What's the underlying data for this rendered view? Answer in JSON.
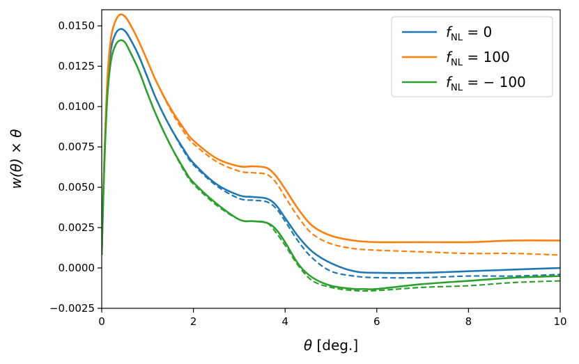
{
  "chart_data": {
    "type": "line",
    "xlabel": {
      "symbol": "θ",
      "text": " [deg.]"
    },
    "ylabel": "w(θ) × θ",
    "xlim": [
      0,
      10
    ],
    "ylim": [
      -0.0025,
      0.016
    ],
    "xticks": [
      0,
      2,
      4,
      6,
      8,
      10
    ],
    "xtick_labels": [
      "0",
      "2",
      "4",
      "6",
      "8",
      "10"
    ],
    "yticks": [
      -0.0025,
      0.0,
      0.0025,
      0.005,
      0.0075,
      0.01,
      0.0125,
      0.015
    ],
    "ytick_labels": [
      "−0.0025",
      "0.0000",
      "0.0025",
      "0.0050",
      "0.0075",
      "0.0100",
      "0.0125",
      "0.0150"
    ],
    "grid": false,
    "legend_position": "top-right",
    "series": [
      {
        "legend": {
          "sym": "f",
          "sub": "NL",
          "rest": " = 0"
        },
        "color": "#1f77b4",
        "solid": [
          [
            0.0,
            0.0008
          ],
          [
            0.05,
            0.006
          ],
          [
            0.12,
            0.011
          ],
          [
            0.2,
            0.0135
          ],
          [
            0.3,
            0.0145
          ],
          [
            0.4,
            0.0148
          ],
          [
            0.5,
            0.0147
          ],
          [
            0.6,
            0.0143
          ],
          [
            0.8,
            0.0132
          ],
          [
            1.0,
            0.0118
          ],
          [
            1.2,
            0.0104
          ],
          [
            1.5,
            0.0087
          ],
          [
            1.8,
            0.0073
          ],
          [
            2.0,
            0.0065
          ],
          [
            2.5,
            0.0052
          ],
          [
            3.0,
            0.0045
          ],
          [
            3.3,
            0.0044
          ],
          [
            3.6,
            0.0043
          ],
          [
            3.8,
            0.0039
          ],
          [
            4.0,
            0.0031
          ],
          [
            4.3,
            0.0019
          ],
          [
            4.6,
            0.001
          ],
          [
            5.0,
            0.0003
          ],
          [
            5.5,
            -0.0002
          ],
          [
            6.0,
            -0.0003
          ],
          [
            7.0,
            -0.0003
          ],
          [
            8.0,
            -0.0002
          ],
          [
            9.0,
            -0.0001
          ],
          [
            10.0,
            0.0
          ]
        ],
        "dashed": [
          [
            0.0,
            0.0008
          ],
          [
            0.05,
            0.006
          ],
          [
            0.12,
            0.011
          ],
          [
            0.2,
            0.0135
          ],
          [
            0.3,
            0.0145
          ],
          [
            0.4,
            0.0148
          ],
          [
            0.5,
            0.0147
          ],
          [
            0.6,
            0.0143
          ],
          [
            0.8,
            0.0132
          ],
          [
            1.0,
            0.0118
          ],
          [
            1.2,
            0.0104
          ],
          [
            1.5,
            0.0087
          ],
          [
            1.8,
            0.0072
          ],
          [
            2.0,
            0.0064
          ],
          [
            2.5,
            0.0051
          ],
          [
            3.0,
            0.0043
          ],
          [
            3.3,
            0.0042
          ],
          [
            3.6,
            0.0041
          ],
          [
            3.8,
            0.0037
          ],
          [
            4.0,
            0.0029
          ],
          [
            4.3,
            0.0016
          ],
          [
            4.6,
            0.0006
          ],
          [
            5.0,
            -0.0002
          ],
          [
            5.5,
            -0.0005
          ],
          [
            6.0,
            -0.0006
          ],
          [
            7.0,
            -0.0006
          ],
          [
            8.0,
            -0.0005
          ],
          [
            9.0,
            -0.0005
          ],
          [
            10.0,
            -0.0004
          ]
        ]
      },
      {
        "legend": {
          "sym": "f",
          "sub": "NL",
          "rest": " = 100"
        },
        "color": "#ff7f0e",
        "solid": [
          [
            0.0,
            0.0008
          ],
          [
            0.05,
            0.0062
          ],
          [
            0.12,
            0.0115
          ],
          [
            0.2,
            0.0142
          ],
          [
            0.3,
            0.0153
          ],
          [
            0.4,
            0.0157
          ],
          [
            0.5,
            0.0156
          ],
          [
            0.6,
            0.0152
          ],
          [
            0.8,
            0.0141
          ],
          [
            1.0,
            0.0128
          ],
          [
            1.2,
            0.0115
          ],
          [
            1.5,
            0.0099
          ],
          [
            1.8,
            0.0086
          ],
          [
            2.0,
            0.0079
          ],
          [
            2.5,
            0.0068
          ],
          [
            3.0,
            0.0063
          ],
          [
            3.3,
            0.0063
          ],
          [
            3.6,
            0.0062
          ],
          [
            3.8,
            0.0057
          ],
          [
            4.0,
            0.0049
          ],
          [
            4.3,
            0.0036
          ],
          [
            4.6,
            0.0026
          ],
          [
            5.0,
            0.002
          ],
          [
            5.5,
            0.0017
          ],
          [
            6.0,
            0.0016
          ],
          [
            7.0,
            0.0016
          ],
          [
            8.0,
            0.0016
          ],
          [
            9.0,
            0.0017
          ],
          [
            10.0,
            0.0017
          ]
        ],
        "dashed": [
          [
            0.0,
            0.0008
          ],
          [
            0.05,
            0.0062
          ],
          [
            0.12,
            0.0115
          ],
          [
            0.2,
            0.0142
          ],
          [
            0.3,
            0.0153
          ],
          [
            0.4,
            0.0157
          ],
          [
            0.5,
            0.0156
          ],
          [
            0.6,
            0.0152
          ],
          [
            0.8,
            0.0141
          ],
          [
            1.0,
            0.0128
          ],
          [
            1.2,
            0.0115
          ],
          [
            1.5,
            0.0098
          ],
          [
            1.8,
            0.0084
          ],
          [
            2.0,
            0.0077
          ],
          [
            2.5,
            0.0066
          ],
          [
            3.0,
            0.006
          ],
          [
            3.3,
            0.0059
          ],
          [
            3.6,
            0.0058
          ],
          [
            3.8,
            0.0053
          ],
          [
            4.0,
            0.0044
          ],
          [
            4.3,
            0.0031
          ],
          [
            4.6,
            0.0021
          ],
          [
            5.0,
            0.0015
          ],
          [
            5.5,
            0.0012
          ],
          [
            6.0,
            0.0011
          ],
          [
            7.0,
            0.001
          ],
          [
            8.0,
            0.0009
          ],
          [
            9.0,
            0.0009
          ],
          [
            10.0,
            0.0008
          ]
        ]
      },
      {
        "legend": {
          "sym": "f",
          "sub": "NL",
          "rest": " = − 100"
        },
        "color": "#2ca02c",
        "solid": [
          [
            0.0,
            0.0008
          ],
          [
            0.05,
            0.0058
          ],
          [
            0.12,
            0.0105
          ],
          [
            0.2,
            0.0128
          ],
          [
            0.3,
            0.0138
          ],
          [
            0.4,
            0.0141
          ],
          [
            0.5,
            0.014
          ],
          [
            0.6,
            0.0135
          ],
          [
            0.8,
            0.0123
          ],
          [
            1.0,
            0.0108
          ],
          [
            1.2,
            0.0094
          ],
          [
            1.5,
            0.0076
          ],
          [
            1.8,
            0.0061
          ],
          [
            2.0,
            0.0053
          ],
          [
            2.5,
            0.004
          ],
          [
            3.0,
            0.003
          ],
          [
            3.3,
            0.0029
          ],
          [
            3.6,
            0.0028
          ],
          [
            3.8,
            0.0024
          ],
          [
            4.0,
            0.0016
          ],
          [
            4.3,
            0.0002
          ],
          [
            4.6,
            -0.0006
          ],
          [
            5.0,
            -0.0011
          ],
          [
            5.5,
            -0.0013
          ],
          [
            5.7,
            -0.0013
          ],
          [
            6.0,
            -0.0013
          ],
          [
            7.0,
            -0.001
          ],
          [
            8.0,
            -0.0008
          ],
          [
            9.0,
            -0.0006
          ],
          [
            10.0,
            -0.0005
          ]
        ],
        "dashed": [
          [
            0.0,
            0.0008
          ],
          [
            0.05,
            0.0058
          ],
          [
            0.12,
            0.0105
          ],
          [
            0.2,
            0.0128
          ],
          [
            0.3,
            0.0138
          ],
          [
            0.4,
            0.0141
          ],
          [
            0.5,
            0.014
          ],
          [
            0.6,
            0.0135
          ],
          [
            0.8,
            0.0123
          ],
          [
            1.0,
            0.0108
          ],
          [
            1.2,
            0.0094
          ],
          [
            1.5,
            0.0076
          ],
          [
            1.8,
            0.006
          ],
          [
            2.0,
            0.0052
          ],
          [
            2.5,
            0.0039
          ],
          [
            3.0,
            0.003
          ],
          [
            3.3,
            0.0029
          ],
          [
            3.6,
            0.0028
          ],
          [
            3.8,
            0.0022
          ],
          [
            4.0,
            0.0014
          ],
          [
            4.3,
            0.0001
          ],
          [
            4.6,
            -0.0008
          ],
          [
            5.0,
            -0.0012
          ],
          [
            5.5,
            -0.0014
          ],
          [
            6.0,
            -0.0014
          ],
          [
            7.0,
            -0.0012
          ],
          [
            8.0,
            -0.0011
          ],
          [
            9.0,
            -0.0009
          ],
          [
            10.0,
            -0.0008
          ]
        ]
      }
    ]
  }
}
